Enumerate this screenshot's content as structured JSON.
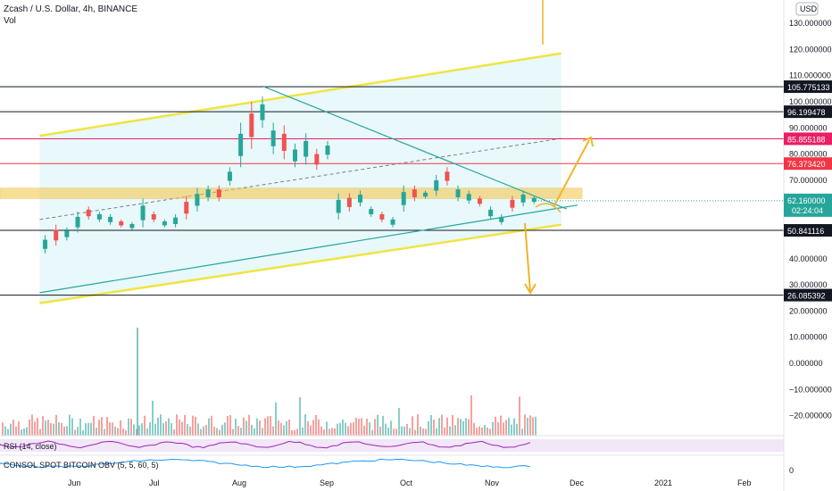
{
  "header": {
    "title": "Zcash / U.S. Dollar, 4h, BINANCE",
    "vol_label": "Vol"
  },
  "currency_badge": "USD",
  "indicators": {
    "rsi_label": "RSI (14, close)",
    "obv_label": "CONSOL SPOT BITCOIN OBV (5, 5, 60, 5)",
    "obv_axis_value": "0"
  },
  "price_tag": {
    "price": "62.160000",
    "countdown": "02:24:04"
  },
  "colors": {
    "up_candle": "#26a69a",
    "down_candle": "#ef5350",
    "channel_line": "#f0e442",
    "channel_fill": "#e6f7fb",
    "zone_fill": "#f5c542",
    "arrow": "#f0b429",
    "trendline": "#26a69a",
    "level_black": "#131722",
    "level_pink": "#e91e63",
    "level_red": "#f23645",
    "rsi_band": "#e9d5f5",
    "rsi_line": "#9c27b0",
    "obv_line": "#2196f3"
  },
  "chart_data": {
    "type": "candlestick",
    "symbol": "Zcash / U.S. Dollar",
    "interval": "4h",
    "exchange": "BINANCE",
    "y_axis": {
      "ticks": [
        "130.000000",
        "120.000000",
        "110.000000",
        "100.000000",
        "90.000000",
        "80.000000",
        "70.000000",
        "60.000000",
        "50.000000",
        "40.000000",
        "30.000000",
        "20.000000",
        "10.000000",
        "0.000000",
        "−10.000000",
        "−20.000000"
      ],
      "tick_values": [
        130,
        120,
        110,
        100,
        90,
        80,
        70,
        60,
        50,
        40,
        30,
        20,
        10,
        0,
        -10,
        -20
      ]
    },
    "x_axis": {
      "ticks": [
        "Jun",
        "Jul",
        "Aug",
        "Sep",
        "Oct",
        "Nov",
        "Dec",
        "2021",
        "Feb"
      ]
    },
    "horizontal_levels": [
      {
        "label": "105.775133",
        "value": 105.775133,
        "color": "#131722"
      },
      {
        "label": "96.199478",
        "value": 96.199478,
        "color": "#131722"
      },
      {
        "label": "85.855188",
        "value": 85.855188,
        "color": "#e91e63"
      },
      {
        "label": "76.373420",
        "value": 76.37342,
        "color": "#f23645"
      },
      {
        "label": "50.841116",
        "value": 50.841116,
        "color": "#131722"
      },
      {
        "label": "26.085392",
        "value": 26.085392,
        "color": "#131722"
      }
    ],
    "current_price": 62.16,
    "resistance_zone": [
      63,
      67
    ],
    "channel": {
      "upper": [
        [
          "2020-05-18",
          87
        ],
        [
          "2020-11-26",
          118.5
        ]
      ],
      "lower": [
        [
          "2020-05-18",
          23
        ],
        [
          "2020-11-26",
          53
        ]
      ],
      "mid": [
        [
          "2020-05-18",
          55
        ],
        [
          "2020-11-26",
          86
        ]
      ]
    },
    "trendlines": [
      [
        [
          "2020-08-08",
          106
        ],
        [
          "2020-11-28",
          59
        ]
      ],
      [
        [
          "2020-05-18",
          27
        ],
        [
          "2020-12-02",
          60.5
        ]
      ]
    ],
    "candles": [
      [
        "2020-05-20",
        42,
        49
      ],
      [
        "2020-05-24",
        45,
        53
      ],
      [
        "2020-05-28",
        47,
        52
      ],
      [
        "2020-06-01",
        50,
        58
      ],
      [
        "2020-06-05",
        55,
        60
      ],
      [
        "2020-06-09",
        54,
        58
      ],
      [
        "2020-06-13",
        53,
        57
      ],
      [
        "2020-06-17",
        52,
        55
      ],
      [
        "2020-06-21",
        51,
        54
      ],
      [
        "2020-06-25",
        52,
        63
      ],
      [
        "2020-06-29",
        54,
        58
      ],
      [
        "2020-07-03",
        52,
        55
      ],
      [
        "2020-07-07",
        52,
        57
      ],
      [
        "2020-07-11",
        55,
        64
      ],
      [
        "2020-07-15",
        58,
        67
      ],
      [
        "2020-07-19",
        62,
        68
      ],
      [
        "2020-07-23",
        62,
        68
      ],
      [
        "2020-07-27",
        68,
        75
      ],
      [
        "2020-07-31",
        75,
        92
      ],
      [
        "2020-08-04",
        82,
        100
      ],
      [
        "2020-08-08",
        90,
        102
      ],
      [
        "2020-08-12",
        80,
        92
      ],
      [
        "2020-08-16",
        78,
        91
      ],
      [
        "2020-08-20",
        75,
        84
      ],
      [
        "2020-08-24",
        76,
        88
      ],
      [
        "2020-08-28",
        74,
        82
      ],
      [
        "2020-09-01",
        78,
        85
      ],
      [
        "2020-09-05",
        55,
        65
      ],
      [
        "2020-09-09",
        58,
        65
      ],
      [
        "2020-09-13",
        60,
        66
      ],
      [
        "2020-09-17",
        56,
        60
      ],
      [
        "2020-09-21",
        54,
        58
      ],
      [
        "2020-09-25",
        52,
        56
      ],
      [
        "2020-09-29",
        58,
        68
      ],
      [
        "2020-10-03",
        62,
        68
      ],
      [
        "2020-10-07",
        63,
        66
      ],
      [
        "2020-10-11",
        64,
        72
      ],
      [
        "2020-10-15",
        68,
        75
      ],
      [
        "2020-10-19",
        62,
        68
      ],
      [
        "2020-10-23",
        61,
        66
      ],
      [
        "2020-10-27",
        60,
        64
      ],
      [
        "2020-10-31",
        55,
        60
      ],
      [
        "2020-11-04",
        53,
        57
      ],
      [
        "2020-11-08",
        58,
        64
      ],
      [
        "2020-11-12",
        60,
        66
      ],
      [
        "2020-11-16",
        61,
        64
      ]
    ]
  }
}
